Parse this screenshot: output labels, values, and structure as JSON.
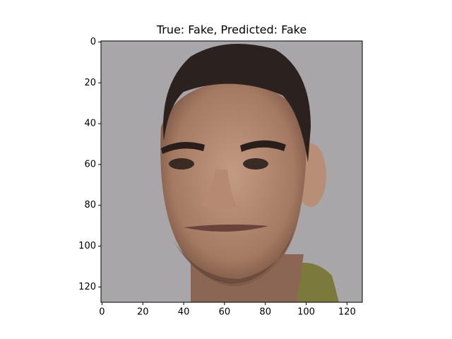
{
  "chart_data": {
    "type": "image",
    "title": "True: Fake, Predicted: Fake",
    "xlim": [
      -0.5,
      127.5
    ],
    "ylim": [
      127.5,
      -0.5
    ],
    "xticks": [
      0,
      20,
      40,
      60,
      80,
      100,
      120
    ],
    "yticks": [
      0,
      20,
      40,
      60,
      80,
      100,
      120
    ]
  }
}
